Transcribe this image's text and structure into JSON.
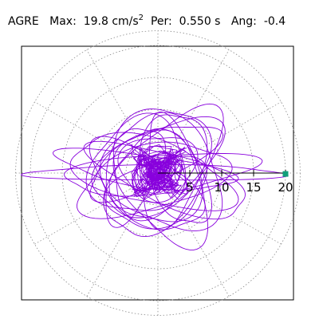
{
  "header": {
    "station": "AGRE",
    "max_label": "Max:",
    "max_value": "19.8 cm/s",
    "max_unit_power": "2",
    "per_label": "Per:",
    "per_value": "0.550 s",
    "ang_label": "Ang:",
    "ang_value": "-0.4"
  },
  "chart_data": {
    "type": "polar-trajectory",
    "radial_ticks": [
      5,
      10,
      15,
      20
    ],
    "radial_tick_labels": [
      "5",
      "10",
      "15",
      "20"
    ],
    "r_max": 22.3,
    "angular_grid_step_deg": 30,
    "grid": true,
    "max_marker": {
      "r": 19.8,
      "angle_deg": -0.4
    },
    "series": [
      {
        "color": "#8800dd",
        "description_points": [
          [
            0.5,
            -0.3
          ],
          [
            2.0,
            1.5
          ],
          [
            -1.0,
            2.8
          ],
          [
            -3.0,
            0.5
          ],
          [
            -1.5,
            -2.5
          ],
          [
            1.5,
            -2.0
          ],
          [
            3.0,
            0.8
          ],
          [
            0.0,
            1.0
          ],
          [
            -0.8,
            -0.6
          ],
          [
            0.7,
            0.4
          ]
        ],
        "rings": [
          [
            -2,
            0.5,
            14,
            2.5,
            -8
          ],
          [
            0,
            1,
            11,
            6,
            30
          ],
          [
            1,
            0,
            10,
            8,
            -40
          ],
          [
            -1,
            -1,
            12,
            5,
            15
          ],
          [
            0,
            2,
            9,
            7,
            60
          ],
          [
            2,
            -1,
            13,
            4,
            -20
          ],
          [
            -3,
            1,
            8,
            7,
            45
          ],
          [
            0,
            0,
            15,
            3,
            5
          ],
          [
            1,
            -2,
            10,
            6,
            -60
          ],
          [
            -1,
            2,
            11,
            4,
            25
          ],
          [
            0,
            -1,
            7,
            7,
            0
          ],
          [
            2,
            1,
            9,
            5,
            80
          ],
          [
            -2,
            -2,
            10,
            5,
            -35
          ],
          [
            0,
            1,
            6,
            5,
            10
          ],
          [
            1,
            0,
            12,
            6,
            50
          ],
          [
            -1,
            0,
            13,
            5,
            -15
          ],
          [
            0,
            0,
            20,
            1.2,
            0
          ],
          [
            -4,
            0,
            8,
            4,
            70
          ],
          [
            3,
            0,
            9,
            4,
            -70
          ],
          [
            0,
            -3,
            8,
            5,
            20
          ]
        ]
      }
    ]
  }
}
